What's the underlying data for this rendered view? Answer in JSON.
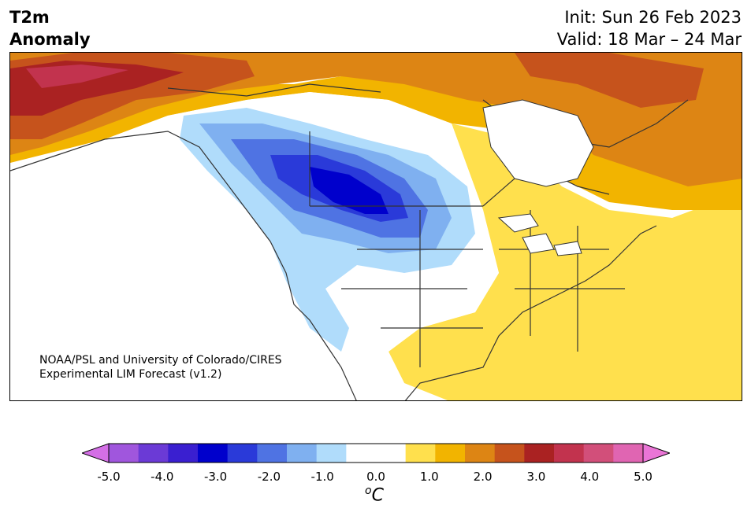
{
  "header": {
    "variable": "T2m",
    "variable_sub": "Anomaly",
    "init": "Init: Sun 26 Feb 2023",
    "valid": "Valid: 18 Mar – 24 Mar"
  },
  "credit": {
    "line1": "NOAA/PSL and University of Colorado/CIRES",
    "line2": "Experimental LIM Forecast (v1.2)"
  },
  "colorbar": {
    "ticks": [
      "-5.0",
      "-4.0",
      "-3.0",
      "-2.0",
      "-1.0",
      "0.0",
      "1.0",
      "2.0",
      "3.0",
      "4.0",
      "5.0"
    ],
    "unit_base": "C",
    "unit_sup": "o",
    "colors": [
      "#d46fe6",
      "#a056dd",
      "#6b3ad6",
      "#3a1fd0",
      "#0000cc",
      "#2a3ad9",
      "#4f73e3",
      "#7fb0f0",
      "#b0dcfb",
      "#ffffff",
      "#ffffff",
      "#ffe04d",
      "#f2b400",
      "#dd8514",
      "#c6531c",
      "#aa2222",
      "#c2334e",
      "#d24f7a",
      "#e065b2",
      "#ea75d6"
    ]
  },
  "map": {
    "region": "North America",
    "colors": {
      "strong_cold": "#0000cc",
      "cold": "#2a3ad9",
      "cool": "#4f73e3",
      "cool_light": "#7fb0f0",
      "cool_pale": "#b0dcfb",
      "neutral": "#ffffff",
      "warm_pale": "#ffe04d",
      "warm": "#f2b400",
      "warm_orange": "#dd8514",
      "hot": "#c6531c",
      "very_hot": "#aa2222",
      "extreme": "#c2334e"
    }
  }
}
